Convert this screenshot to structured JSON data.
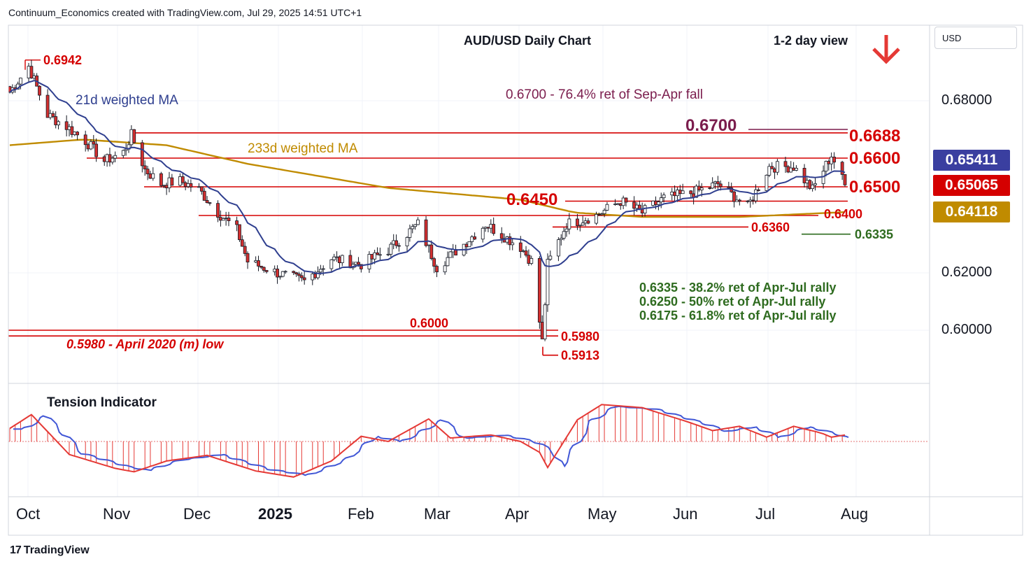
{
  "header": {
    "attribution": "Continuum_Economics created with TradingView.com, Jul 29, 2025 14:51 UTC+1",
    "title": "AUD/USD Daily Chart",
    "view": "1-2 day view",
    "currency_button": "USD",
    "footer_logo": "TradingView",
    "footer_logo_mark": "17"
  },
  "colors": {
    "up": "#ffffff",
    "down": "#d32f2f",
    "wick": "#131722",
    "resistance": "#d50000",
    "support_fib": "#2e6b1f",
    "ma21": "#2f3f8f",
    "ma233": "#c08b00",
    "tension_fill": "#e53935",
    "tension_signal": "#4157d6",
    "bearish_arrow": "#e53935"
  },
  "annotations": {
    "ma21_label": "21d weighted MA",
    "ma233_label": "233d weighted MA",
    "fib_note_top": "0.6700 - 76.4% ret of Sep-Apr fall",
    "high_label": "0.6942",
    "r_6700": "0.6700",
    "r_6688": "0.6688",
    "r_6600": "0.6600",
    "r_6500": "0.6500",
    "r_6450": "0.6450",
    "s_6400": "0.6400",
    "s_6360": "0.6360",
    "s_6335": "0.6335",
    "s_6000": "0.6000",
    "s_5980": "0.5980",
    "s_5913": "0.5913",
    "low_note": "0.5980 - April 2020 (m) low",
    "fib_1": "0.6335 - 38.2% ret of Apr-Jul rally",
    "fib_2": "0.6250 - 50% ret of Apr-Jul rally",
    "fib_3": "0.6175 - 61.8% ret of Apr-Jul rally",
    "tension_label": "Tension Indicator"
  },
  "price_boxes": {
    "ma21": {
      "value": "0.65411",
      "color": "#3a3fa0"
    },
    "last": {
      "value": "0.65065",
      "color": "#d50000"
    },
    "ma233": {
      "value": "0.64118",
      "color": "#c08b00"
    }
  },
  "chart_data": {
    "type": "candlestick",
    "title": "AUD/USD Daily Chart",
    "y_ticks": [
      "0.68000",
      "0.62000",
      "0.60000"
    ],
    "x_ticks": [
      "Oct",
      "Nov",
      "Dec",
      "2025",
      "Feb",
      "Mar",
      "Apr",
      "May",
      "Jun",
      "Jul",
      "Aug"
    ],
    "ylim": [
      0.5875,
      0.7045
    ],
    "last_close": 0.65065,
    "ma21_last": 0.65411,
    "ma233_last": 0.64118,
    "horizontal_levels": [
      0.6942,
      0.67,
      0.6688,
      0.66,
      0.65,
      0.645,
      0.64,
      0.636,
      0.6335,
      0.6,
      0.598,
      0.5913
    ],
    "close_anchors": [
      [
        "2024-09-23",
        0.683
      ],
      [
        "2024-09-30",
        0.692
      ],
      [
        "2024-10-07",
        0.675
      ],
      [
        "2024-10-14",
        0.671
      ],
      [
        "2024-10-21",
        0.666
      ],
      [
        "2024-10-28",
        0.659
      ],
      [
        "2024-11-04",
        0.662
      ],
      [
        "2024-11-07",
        0.668
      ],
      [
        "2024-11-12",
        0.656
      ],
      [
        "2024-11-18",
        0.651
      ],
      [
        "2024-11-25",
        0.652
      ],
      [
        "2024-12-02",
        0.649
      ],
      [
        "2024-12-09",
        0.641
      ],
      [
        "2024-12-16",
        0.635
      ],
      [
        "2024-12-20",
        0.624
      ],
      [
        "2024-12-31",
        0.62
      ],
      [
        "2025-01-10",
        0.617
      ],
      [
        "2025-01-20",
        0.625
      ],
      [
        "2025-01-31",
        0.623
      ],
      [
        "2025-02-10",
        0.628
      ],
      [
        "2025-02-21",
        0.637
      ],
      [
        "2025-02-28",
        0.622
      ],
      [
        "2025-03-10",
        0.63
      ],
      [
        "2025-03-18",
        0.637
      ],
      [
        "2025-03-31",
        0.629
      ],
      [
        "2025-04-04",
        0.624
      ],
      [
        "2025-04-08",
        0.596
      ],
      [
        "2025-04-10",
        0.623
      ],
      [
        "2025-04-17",
        0.637
      ],
      [
        "2025-04-28",
        0.64
      ],
      [
        "2025-05-07",
        0.645
      ],
      [
        "2025-05-15",
        0.641
      ],
      [
        "2025-05-23",
        0.646
      ],
      [
        "2025-06-03",
        0.648
      ],
      [
        "2025-06-12",
        0.651
      ],
      [
        "2025-06-23",
        0.643
      ],
      [
        "2025-07-01",
        0.657
      ],
      [
        "2025-07-10",
        0.657
      ],
      [
        "2025-07-17",
        0.649
      ],
      [
        "2025-07-24",
        0.661
      ],
      [
        "2025-07-29",
        0.65065
      ]
    ],
    "tension_indicator": {
      "name": "Tension Indicator",
      "anchors": [
        [
          "2024-09-23",
          0.3
        ],
        [
          "2024-10-01",
          0.62
        ],
        [
          "2024-10-15",
          -0.3
        ],
        [
          "2024-11-01",
          -0.62
        ],
        [
          "2024-11-08",
          -0.7
        ],
        [
          "2024-11-20",
          -0.45
        ],
        [
          "2024-12-05",
          -0.32
        ],
        [
          "2024-12-23",
          -0.68
        ],
        [
          "2025-01-06",
          -0.82
        ],
        [
          "2025-01-20",
          -0.45
        ],
        [
          "2025-01-31",
          0.12
        ],
        [
          "2025-02-10",
          0.0
        ],
        [
          "2025-02-25",
          0.52
        ],
        [
          "2025-03-05",
          0.08
        ],
        [
          "2025-03-20",
          0.15
        ],
        [
          "2025-03-31",
          0.0
        ],
        [
          "2025-04-07",
          -0.25
        ],
        [
          "2025-04-10",
          -0.6
        ],
        [
          "2025-04-21",
          0.5
        ],
        [
          "2025-04-30",
          0.85
        ],
        [
          "2025-05-15",
          0.78
        ],
        [
          "2025-06-01",
          0.45
        ],
        [
          "2025-06-10",
          0.25
        ],
        [
          "2025-06-20",
          0.35
        ],
        [
          "2025-06-30",
          0.1
        ],
        [
          "2025-07-10",
          0.35
        ],
        [
          "2025-07-20",
          0.2
        ],
        [
          "2025-07-24",
          0.1
        ],
        [
          "2025-07-29",
          0.15
        ]
      ]
    }
  }
}
